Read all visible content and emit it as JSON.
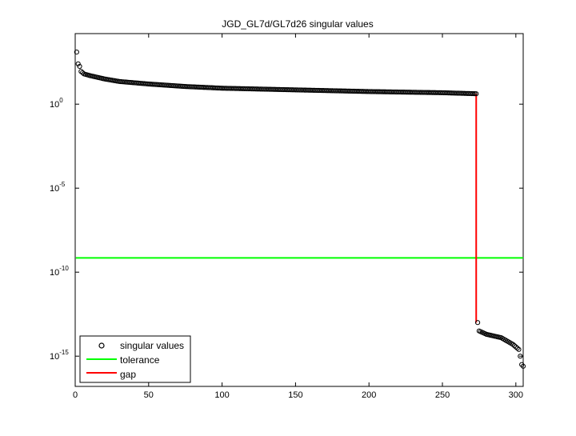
{
  "chart_data": {
    "type": "scatter",
    "title": "JGD_GL7d/GL7d26 singular values",
    "xlabel": "",
    "ylabel": "",
    "x_range": [
      0,
      305
    ],
    "y_scale": "log",
    "y_range_log10": [
      -16.8,
      4.2
    ],
    "x_ticks": [
      0,
      50,
      100,
      150,
      200,
      250,
      300
    ],
    "y_ticks": [
      {
        "base": "10",
        "exp": "0",
        "log10": 0
      },
      {
        "base": "10",
        "exp": "-5",
        "log10": -5
      },
      {
        "base": "10",
        "exp": "-10",
        "log10": -10
      },
      {
        "base": "10",
        "exp": "-15",
        "log10": -15
      }
    ],
    "grid": false,
    "legend_position": "bottom-left",
    "legend": [
      "singular values",
      "tolerance",
      "gap"
    ],
    "colors": {
      "singular_values": "#000000",
      "tolerance": "#00ff00",
      "gap": "#ff0000"
    },
    "series": [
      {
        "name": "singular values",
        "marker": "circle",
        "n_points": 305,
        "shape_log10": {
          "upper_branch": [
            [
              1,
              3.1
            ],
            [
              2,
              2.4
            ],
            [
              3,
              2.25
            ],
            [
              4,
              1.95
            ],
            [
              6,
              1.8
            ],
            [
              10,
              1.7
            ],
            [
              20,
              1.5
            ],
            [
              30,
              1.35
            ],
            [
              50,
              1.2
            ],
            [
              75,
              1.05
            ],
            [
              100,
              0.95
            ],
            [
              150,
              0.85
            ],
            [
              200,
              0.75
            ],
            [
              250,
              0.68
            ],
            [
              273,
              0.62
            ]
          ],
          "lower_branch": [
            [
              274,
              -13.0
            ],
            [
              275,
              -13.5
            ],
            [
              280,
              -13.7
            ],
            [
              290,
              -13.9
            ],
            [
              298,
              -14.3
            ],
            [
              302,
              -14.6
            ],
            [
              303,
              -15.0
            ],
            [
              304,
              -15.5
            ],
            [
              305,
              -15.6
            ]
          ]
        }
      },
      {
        "name": "tolerance",
        "type": "line",
        "y_log10": -9.15,
        "x": [
          1,
          305
        ]
      },
      {
        "name": "gap",
        "type": "line",
        "x": [
          273,
          273
        ],
        "y_log10": [
          0.62,
          -13.0
        ]
      }
    ]
  }
}
